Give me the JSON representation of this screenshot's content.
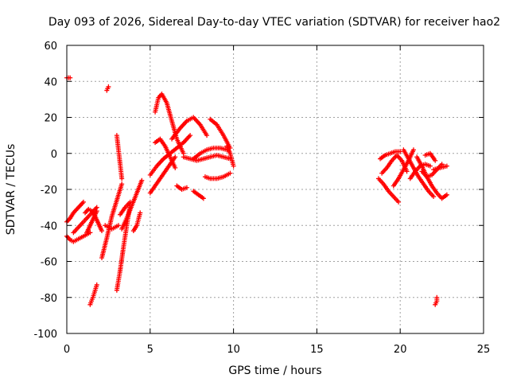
{
  "chart_data": {
    "type": "scatter",
    "title": "Day 093 of 2026, Sidereal Day-to-day VTEC variation (SDTVAR) for receiver hao2",
    "xlabel": "GPS time / hours",
    "ylabel": "SDTVAR / TECUs",
    "xlim": [
      0,
      25
    ],
    "ylim": [
      -100,
      60
    ],
    "xticks": [
      "0",
      "5",
      "10",
      "15",
      "20",
      "25"
    ],
    "yticks": [
      "-100",
      "-80",
      "-60",
      "-40",
      "-20",
      "0",
      "20",
      "40",
      "60"
    ],
    "grid": true,
    "marker": "+",
    "color": "#ff0000",
    "series": [
      {
        "x": [
          0.0,
          0.2
        ],
        "y": [
          42,
          42
        ]
      },
      {
        "x": [
          0.0,
          0.2,
          0.4,
          0.6,
          0.8,
          1.0
        ],
        "y": [
          -38,
          -36,
          -33,
          -31,
          -29,
          -27
        ]
      },
      {
        "x": [
          0.0,
          0.2,
          0.4,
          0.6,
          0.8,
          1.0,
          1.2,
          1.4
        ],
        "y": [
          -46,
          -48,
          -49,
          -48,
          -47,
          -46,
          -45,
          -44
        ]
      },
      {
        "x": [
          0.4,
          0.7,
          1.0,
          1.3,
          1.6,
          1.8
        ],
        "y": [
          -44,
          -41,
          -38,
          -35,
          -32,
          -30
        ]
      },
      {
        "x": [
          1.1,
          1.3,
          1.5,
          1.7,
          1.9,
          2.1
        ],
        "y": [
          -33,
          -31,
          -32,
          -35,
          -39,
          -43
        ]
      },
      {
        "x": [
          1.2,
          1.4,
          1.6,
          1.8
        ],
        "y": [
          -44,
          -40,
          -36,
          -32
        ]
      },
      {
        "x": [
          1.4,
          1.6,
          1.8
        ],
        "y": [
          -84,
          -79,
          -73
        ]
      },
      {
        "x": [
          2.3,
          2.5,
          2.7,
          2.9,
          3.1
        ],
        "y": [
          -40,
          -41,
          -42,
          -41,
          -40
        ]
      },
      {
        "x": [
          2.1,
          2.4,
          2.7,
          3.0,
          3.3
        ],
        "y": [
          -58,
          -47,
          -35,
          -26,
          -17
        ]
      },
      {
        "x": [
          2.4,
          2.5
        ],
        "y": [
          35,
          37
        ]
      },
      {
        "x": [
          3.0,
          3.1,
          3.2,
          3.3
        ],
        "y": [
          10,
          2,
          -6,
          -14
        ]
      },
      {
        "x": [
          3.0,
          3.2,
          3.4,
          3.6,
          3.8
        ],
        "y": [
          -76,
          -65,
          -52,
          -40,
          -28
        ]
      },
      {
        "x": [
          3.2,
          3.5,
          3.8
        ],
        "y": [
          -34,
          -30,
          -27
        ]
      },
      {
        "x": [
          3.3,
          3.6,
          3.9,
          4.2,
          4.5
        ],
        "y": [
          -42,
          -36,
          -29,
          -22,
          -15
        ]
      },
      {
        "x": [
          4.0,
          4.2,
          4.4
        ],
        "y": [
          -43,
          -40,
          -33
        ]
      },
      {
        "x": [
          5.0,
          5.3,
          5.6,
          5.9,
          6.2,
          6.5
        ],
        "y": [
          -22,
          -18,
          -14,
          -10,
          -6,
          -2
        ]
      },
      {
        "x": [
          5.3,
          5.5,
          5.7,
          6.0,
          6.3,
          6.6,
          7.0
        ],
        "y": [
          23,
          31,
          33,
          28,
          18,
          8,
          0
        ]
      },
      {
        "x": [
          5.0,
          5.4,
          5.8,
          6.2,
          6.6,
          7.0,
          7.4
        ],
        "y": [
          -12,
          -7,
          -3,
          0,
          3,
          6,
          10
        ]
      },
      {
        "x": [
          5.3,
          5.6,
          5.9,
          6.2,
          6.5
        ],
        "y": [
          6,
          8,
          4,
          -2,
          -8
        ]
      },
      {
        "x": [
          6.3,
          6.8,
          7.2,
          7.6,
          8.0,
          8.4
        ],
        "y": [
          8,
          14,
          18,
          20,
          16,
          10
        ]
      },
      {
        "x": [
          6.6,
          6.9,
          7.2
        ],
        "y": [
          -18,
          -20,
          -19
        ]
      },
      {
        "x": [
          7.0,
          7.4,
          7.8,
          8.2,
          8.6,
          9.0,
          9.4,
          9.8
        ],
        "y": [
          -2,
          -3,
          -4,
          -3,
          -2,
          -1,
          -2,
          -3
        ]
      },
      {
        "x": [
          7.6,
          7.9,
          8.2
        ],
        "y": [
          -21,
          -23,
          -25
        ]
      },
      {
        "x": [
          7.6,
          8.0,
          8.4,
          8.8,
          9.2,
          9.6
        ],
        "y": [
          -3,
          0,
          2,
          3,
          3,
          2
        ]
      },
      {
        "x": [
          8.3,
          8.6,
          9.0,
          9.4,
          9.8
        ],
        "y": [
          -13,
          -14,
          -14,
          -13,
          -11
        ]
      },
      {
        "x": [
          8.6,
          9.0,
          9.4,
          9.8
        ],
        "y": [
          19,
          16,
          10,
          3
        ]
      },
      {
        "x": [
          9.6,
          9.8,
          10.0
        ],
        "y": [
          4,
          0,
          -7
        ]
      },
      {
        "x": [
          18.7,
          19.0,
          19.3,
          19.6,
          19.9
        ],
        "y": [
          -14,
          -17,
          -21,
          -24,
          -27
        ]
      },
      {
        "x": [
          18.8,
          19.1,
          19.4,
          19.7,
          20.0
        ],
        "y": [
          -3,
          -1,
          0,
          1,
          1
        ]
      },
      {
        "x": [
          18.9,
          19.2,
          19.5,
          19.8,
          20.1,
          20.4
        ],
        "y": [
          -11,
          -8,
          -4,
          -1,
          -4,
          -10
        ]
      },
      {
        "x": [
          19.6,
          19.9,
          20.2,
          20.5,
          20.8
        ],
        "y": [
          -18,
          -14,
          -9,
          -4,
          2
        ]
      },
      {
        "x": [
          20.2,
          20.5,
          20.8,
          21.1,
          21.4,
          21.7,
          22.0
        ],
        "y": [
          2,
          -3,
          -8,
          -13,
          -17,
          -21,
          -24
        ]
      },
      {
        "x": [
          20.6,
          20.9,
          21.2,
          21.5,
          21.8
        ],
        "y": [
          -14,
          -10,
          -7,
          -6,
          -7
        ]
      },
      {
        "x": [
          21.0,
          21.3,
          21.6,
          21.9,
          22.2,
          22.5,
          22.8
        ],
        "y": [
          -2,
          -7,
          -13,
          -18,
          -22,
          -25,
          -23
        ]
      },
      {
        "x": [
          21.3,
          21.6,
          21.9,
          22.2,
          22.5
        ],
        "y": [
          -10,
          -13,
          -12,
          -9,
          -6
        ]
      },
      {
        "x": [
          21.5,
          21.8,
          22.1
        ],
        "y": [
          -1,
          0,
          -4
        ]
      },
      {
        "x": [
          22.0,
          22.4,
          22.8
        ],
        "y": [
          -9,
          -8,
          -7
        ]
      },
      {
        "x": [
          22.1,
          22.2,
          22.2
        ],
        "y": [
          -84,
          -82,
          -80
        ]
      }
    ]
  }
}
